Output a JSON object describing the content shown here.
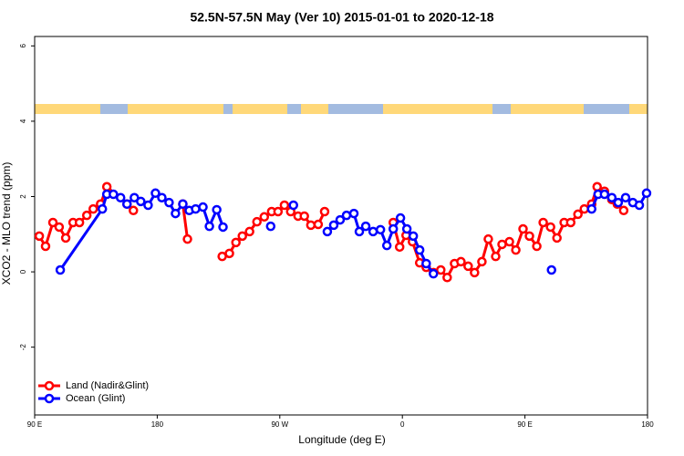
{
  "chart_data": {
    "type": "line",
    "title": "52.5N-57.5N May (Ver 10)   2015-01-01 to 2020-12-18",
    "x_label": "Longitude (deg E)",
    "y_label": "XCO2 - MLO trend (ppm)",
    "xlim": [
      90,
      540
    ],
    "ylim": [
      -3.8,
      6.25
    ],
    "xticks": [
      {
        "value": 90,
        "label": "90 E"
      },
      180,
      {
        "value": 270,
        "label": "90 W"
      },
      {
        "value": 360,
        "label": "0"
      },
      {
        "value": 450,
        "label": "90 E"
      },
      {
        "value": 540,
        "label": "180"
      }
    ],
    "yticks": [
      -2,
      0,
      2,
      4,
      6
    ],
    "legend": "bottom-left",
    "series": [
      {
        "name": "Land (Nadir&Glint)",
        "color": "#ff0000",
        "x": [
          93.4,
          98,
          103.4,
          108,
          112.8,
          118.2,
          122.9,
          128.3,
          133,
          138.4,
          143,
          157.8,
          162.5,
          null,
          198.8,
          202.2,
          null,
          227.7,
          233,
          237.8,
          242.5,
          247.8,
          253.2,
          258.6,
          264,
          268.7,
          273.4,
          278,
          283.4,
          288,
          292.8,
          298.2,
          302.9,
          null,
          353.3,
          358,
          362.7,
          367.4,
          372.7,
          377.5,
          382.8,
          388.2,
          392.9,
          398.3,
          403,
          408.3,
          413,
          418.4,
          423.1,
          428.5,
          433.2,
          438.6,
          443.3,
          448.6,
          453.3,
          458.7,
          463.4,
          468.8,
          473.5,
          478.8,
          483.6,
          488.9,
          493.6,
          499,
          503,
          508.4,
          513.8,
          517.8,
          522.5
        ],
        "values": [
          0.95,
          0.68,
          1.31,
          1.19,
          0.9,
          1.31,
          1.31,
          1.5,
          1.67,
          1.8,
          2.26,
          1.8,
          1.63,
          null,
          1.8,
          0.87,
          null,
          0.41,
          0.49,
          0.78,
          0.95,
          1.07,
          1.33,
          1.46,
          1.6,
          1.6,
          1.77,
          1.6,
          1.48,
          1.48,
          1.24,
          1.26,
          1.6,
          null,
          1.31,
          0.66,
          0.97,
          0.8,
          0.24,
          0.12,
          -0.02,
          0.05,
          -0.15,
          0.22,
          0.27,
          0.15,
          -0.02,
          0.27,
          0.87,
          0.41,
          0.73,
          0.8,
          0.58,
          1.14,
          0.95,
          0.68,
          1.31,
          1.19,
          0.9,
          1.31,
          1.31,
          1.53,
          1.67,
          1.8,
          2.26,
          2.14,
          1.92,
          1.8,
          1.63
        ]
      },
      {
        "name": "Ocean (Glint)",
        "color": "#0000ff",
        "x": [
          108.8,
          139.7,
          143,
          147.8,
          153.1,
          157.8,
          163.2,
          167.9,
          173.3,
          178.7,
          183.4,
          188.7,
          193.4,
          198.8,
          203.5,
          208.2,
          213.6,
          218.3,
          223.7,
          228.3,
          null,
          263.3,
          null,
          280,
          null,
          304.9,
          309.6,
          314.3,
          319,
          324.4,
          328.4,
          333.1,
          338.5,
          343.9,
          348.6,
          353.3,
          358.6,
          363.3,
          368,
          372.7,
          377.5,
          382.8,
          null,
          469.5,
          null,
          499,
          503.7,
          508.4,
          513.8,
          518.5,
          523.9,
          529.2,
          534,
          539.3
        ],
        "values": [
          0.05,
          1.67,
          2.06,
          2.06,
          1.97,
          1.8,
          1.97,
          1.87,
          1.77,
          2.09,
          1.97,
          1.84,
          1.55,
          1.8,
          1.63,
          1.67,
          1.72,
          1.21,
          1.65,
          1.19,
          null,
          1.21,
          null,
          1.77,
          null,
          1.07,
          1.24,
          1.38,
          1.5,
          1.55,
          1.07,
          1.21,
          1.07,
          1.12,
          0.7,
          1.14,
          1.43,
          1.14,
          0.95,
          0.58,
          0.22,
          -0.05,
          null,
          0.05,
          null,
          1.67,
          2.06,
          2.06,
          1.97,
          1.84,
          1.97,
          1.84,
          1.77,
          2.09
        ]
      }
    ]
  }
}
